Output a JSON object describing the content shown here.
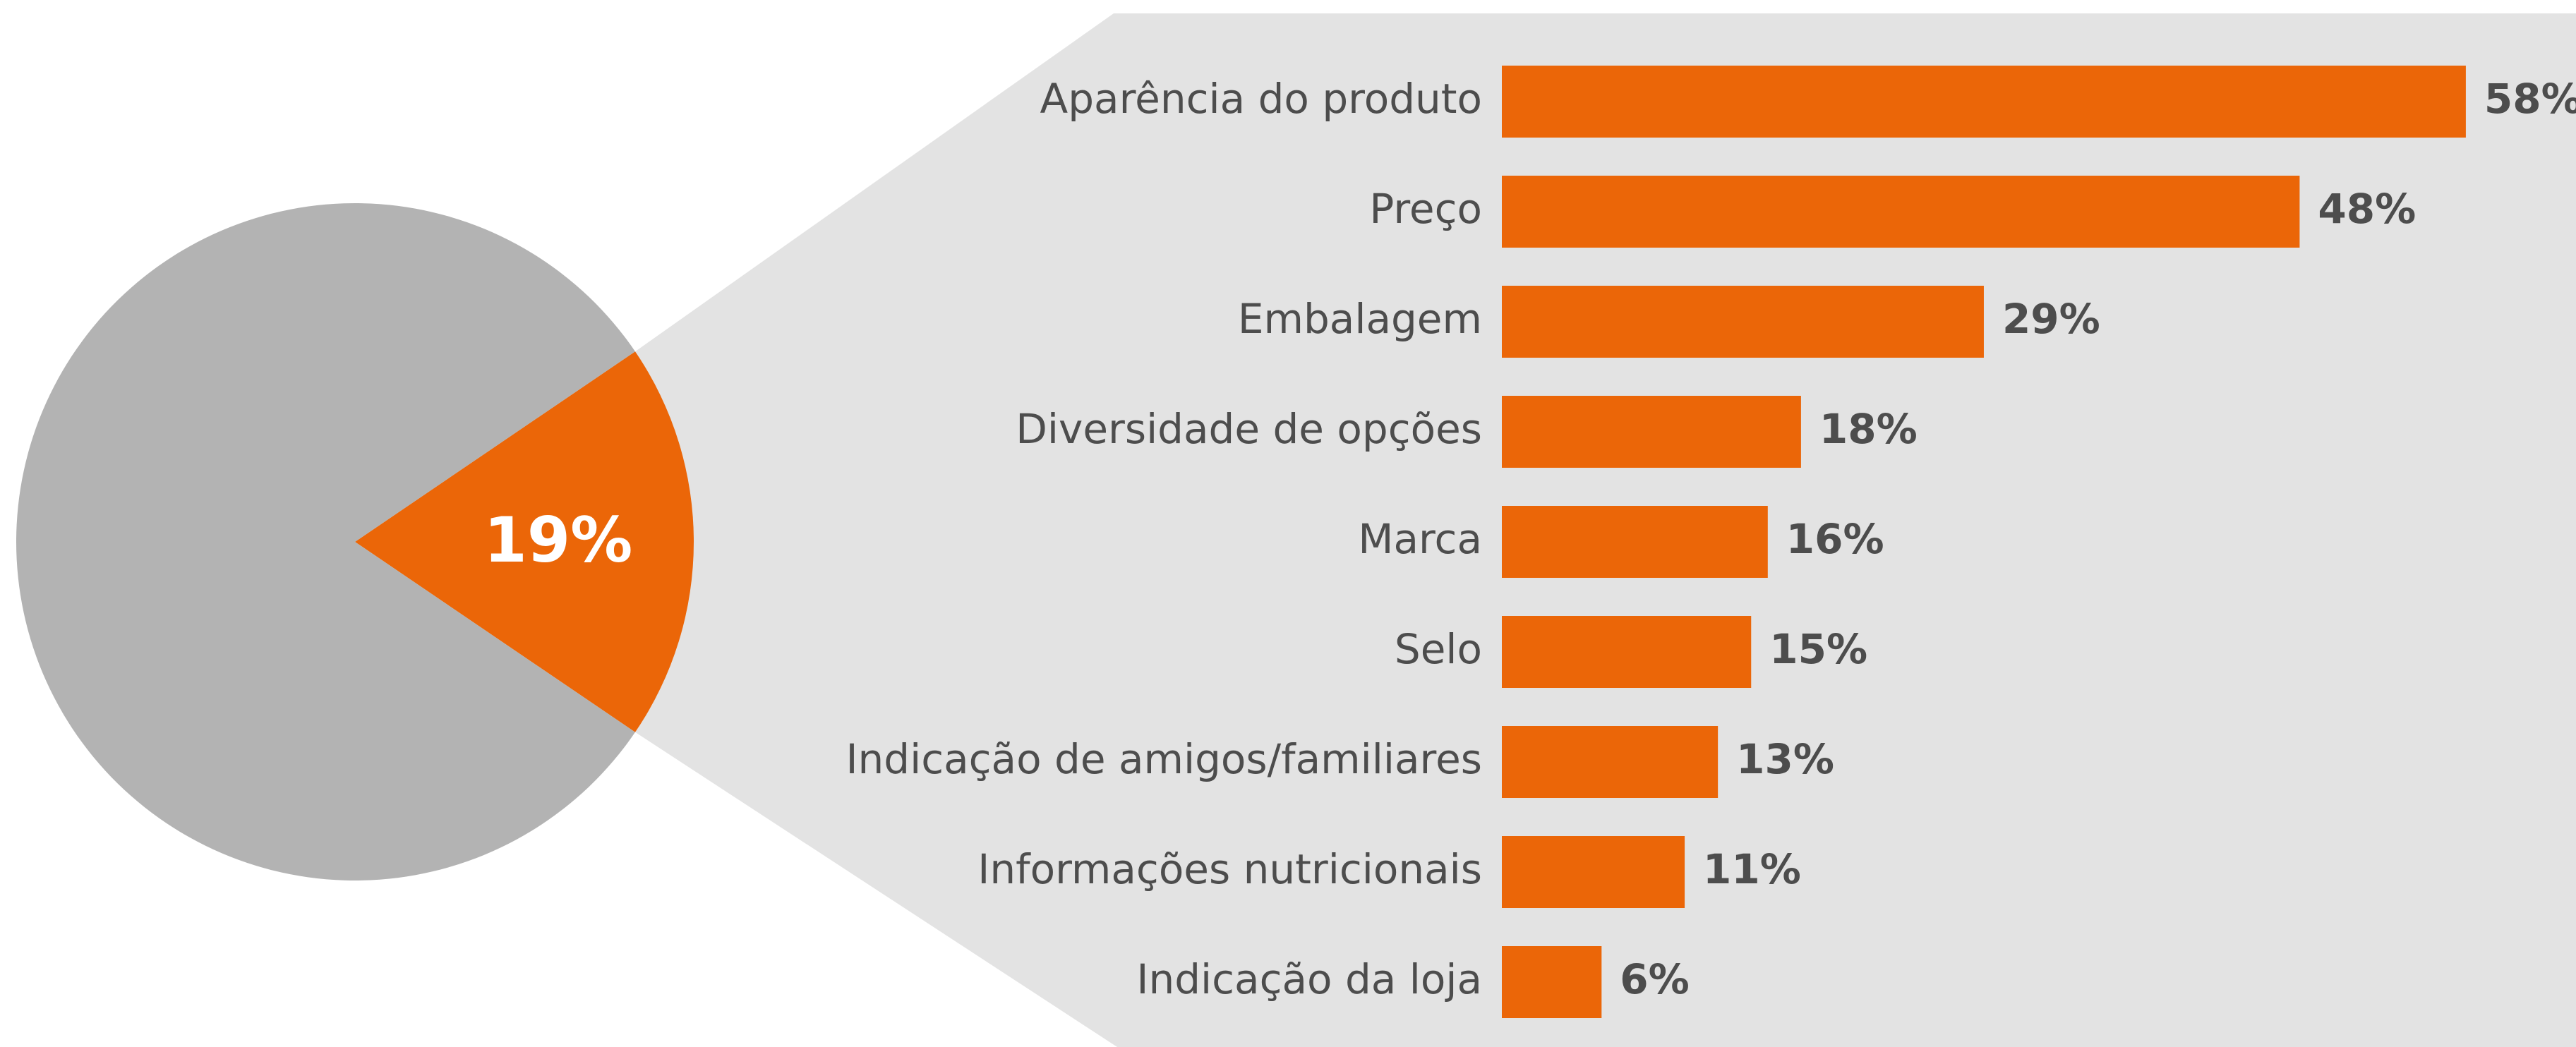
{
  "chart_data": [
    {
      "type": "pie",
      "values": [
        19,
        81
      ],
      "value_labels": [
        "19%",
        null
      ],
      "colors": [
        "#eb6608",
        "#b3b3b3"
      ]
    },
    {
      "type": "barh",
      "categories": [
        "Aparência do produto",
        "Preço",
        "Embalagem",
        "Diversidade de opções",
        "Marca",
        "Selo",
        "Indicação de amigos/familiares",
        "Informações nutricionais",
        "Indicação da loja"
      ],
      "values": [
        58,
        48,
        29,
        18,
        16,
        15,
        13,
        11,
        6
      ],
      "value_labels": [
        "58%",
        "48%",
        "29%",
        "18%",
        "16%",
        "15%",
        "13%",
        "11%",
        "6%"
      ],
      "color": "#eb6608"
    }
  ]
}
